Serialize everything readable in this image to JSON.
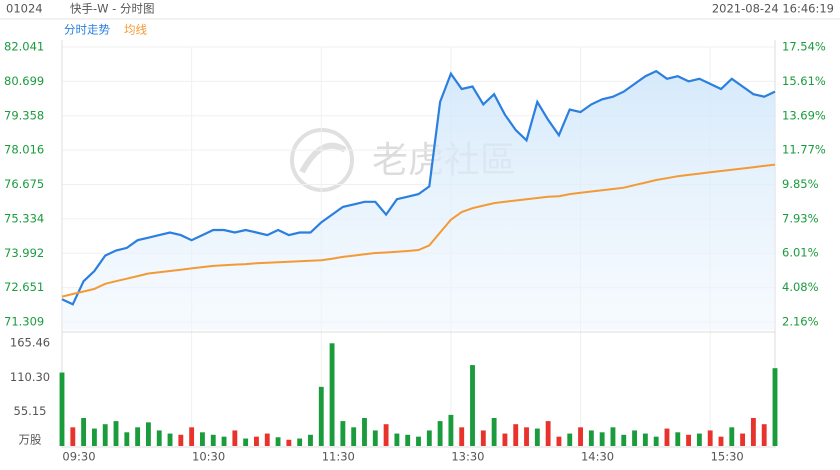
{
  "header": {
    "code": "01024",
    "name": "快手-W - 分时图",
    "datetime": "2021-08-24 16:46:19",
    "watermark": "老虎社區"
  },
  "chart_data": [
    {
      "type": "line",
      "xlim": [
        0,
        66
      ],
      "xticks": [
        {
          "value": 0,
          "label": "09:30"
        },
        {
          "value": 12,
          "label": "10:30"
        },
        {
          "value": 24,
          "label": "11:30"
        },
        {
          "value": 36,
          "label": "13:30"
        },
        {
          "value": 48,
          "label": "14:30"
        },
        {
          "value": 60,
          "label": "15:30"
        }
      ],
      "ylim": [
        71.309,
        82.041
      ],
      "yticks": [
        82.041,
        80.699,
        79.358,
        78.016,
        76.675,
        75.334,
        73.992,
        72.651,
        71.309
      ],
      "y2lim": [
        2.16,
        17.54
      ],
      "y2ticks": [
        {
          "value": 17.54,
          "label": "17.54%"
        },
        {
          "value": 15.61,
          "label": "15.61%"
        },
        {
          "value": 13.69,
          "label": "13.69%"
        },
        {
          "value": 11.77,
          "label": "11.77%"
        },
        {
          "value": 9.85,
          "label": "9.85%"
        },
        {
          "value": 7.93,
          "label": "7.93%"
        },
        {
          "value": 6.01,
          "label": "6.01%"
        },
        {
          "value": 4.08,
          "label": "4.08%"
        },
        {
          "value": 2.16,
          "label": "2.16%"
        }
      ],
      "grid": true,
      "series": [
        {
          "name": "分时走势",
          "color": "#2a7fe0",
          "fill": true,
          "values": [
            72.2,
            72.0,
            72.9,
            73.3,
            73.9,
            74.1,
            74.2,
            74.5,
            74.6,
            74.7,
            74.8,
            74.7,
            74.5,
            74.7,
            74.9,
            74.9,
            74.8,
            74.9,
            74.8,
            74.7,
            74.9,
            74.7,
            74.8,
            74.8,
            75.2,
            75.5,
            75.8,
            75.9,
            76.0,
            76.0,
            75.5,
            76.1,
            76.2,
            76.3,
            76.6,
            79.9,
            81.0,
            80.4,
            80.5,
            79.8,
            80.2,
            79.4,
            78.8,
            78.4,
            79.9,
            79.2,
            78.6,
            79.6,
            79.5,
            79.8,
            80.0,
            80.1,
            80.3,
            80.6,
            80.9,
            81.1,
            80.8,
            80.9,
            80.7,
            80.8,
            80.6,
            80.4,
            80.8,
            80.5,
            80.2,
            80.1,
            80.3
          ]
        },
        {
          "name": "均线",
          "color": "#f39a35",
          "fill": false,
          "values": [
            72.3,
            72.4,
            72.5,
            72.6,
            72.8,
            72.9,
            73.0,
            73.1,
            73.2,
            73.25,
            73.3,
            73.35,
            73.4,
            73.45,
            73.5,
            73.52,
            73.55,
            73.57,
            73.6,
            73.62,
            73.64,
            73.66,
            73.68,
            73.7,
            73.72,
            73.78,
            73.85,
            73.9,
            73.95,
            74.0,
            74.02,
            74.05,
            74.08,
            74.12,
            74.3,
            74.8,
            75.3,
            75.6,
            75.75,
            75.85,
            75.95,
            76.0,
            76.05,
            76.1,
            76.15,
            76.2,
            76.22,
            76.3,
            76.35,
            76.4,
            76.45,
            76.5,
            76.55,
            76.65,
            76.75,
            76.85,
            76.92,
            77.0,
            77.05,
            77.1,
            77.15,
            77.2,
            77.25,
            77.3,
            77.35,
            77.4,
            77.45
          ]
        }
      ]
    },
    {
      "type": "bar",
      "unit": "万股",
      "ylim": [
        0,
        165.46
      ],
      "yticks": [
        165.46,
        {
          "value": 110.3,
          "label": "110.30"
        },
        55.15
      ],
      "up_color": "#1a9b3c",
      "down_color": "#e8322c",
      "values": [
        118,
        30,
        45,
        28,
        35,
        40,
        22,
        30,
        38,
        25,
        20,
        18,
        30,
        22,
        18,
        15,
        25,
        12,
        15,
        20,
        14,
        10,
        12,
        18,
        95,
        165,
        40,
        30,
        45,
        25,
        35,
        20,
        18,
        15,
        25,
        40,
        50,
        30,
        130,
        25,
        45,
        20,
        35,
        30,
        28,
        40,
        15,
        20,
        30,
        25,
        22,
        30,
        18,
        25,
        20,
        15,
        28,
        22,
        18,
        20,
        25,
        15,
        30,
        20,
        45,
        35,
        125
      ]
    }
  ]
}
